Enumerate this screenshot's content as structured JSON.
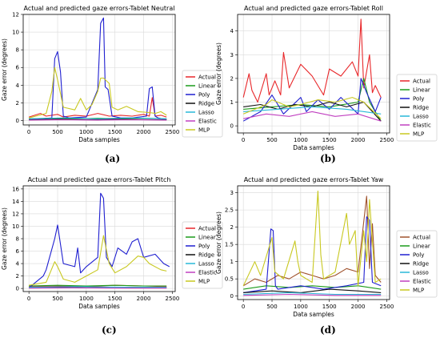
{
  "figure": {
    "panel_labels": [
      "(a)",
      "(b)",
      "(c)",
      "(d)"
    ]
  },
  "chart_data": [
    {
      "type": "line",
      "title": "Actual and predicted gaze errors-Tablet Neutral",
      "xlabel": "Data samples",
      "ylabel": "Gaze error (degrees)",
      "xlim": [
        -100,
        2550
      ],
      "ylim": [
        -0.5,
        12
      ],
      "xticks": [
        0,
        500,
        1000,
        1500,
        2000,
        2500
      ],
      "yticks": [
        0,
        2,
        4,
        6,
        8,
        10,
        12
      ],
      "grid": true,
      "legend_position": "right",
      "series": [
        {
          "name": "Actual",
          "color": "#e8272a",
          "x": [
            0,
            200,
            300,
            500,
            600,
            800,
            1000,
            1200,
            1400,
            1600,
            1800,
            2000,
            2100,
            2150,
            2200,
            2300,
            2400
          ],
          "y": [
            0.4,
            0.8,
            0.5,
            0.7,
            0.4,
            0.6,
            0.5,
            0.8,
            0.5,
            0.6,
            0.5,
            0.7,
            0.5,
            2.6,
            0.5,
            0.6,
            0.4
          ]
        },
        {
          "name": "Linear",
          "color": "#1a9a1a",
          "x": [
            0,
            400,
            800,
            1200,
            1600,
            2000,
            2400
          ],
          "y": [
            0.2,
            0.25,
            0.2,
            0.25,
            0.2,
            0.25,
            0.2
          ]
        },
        {
          "name": "Poly",
          "color": "#1f1fd0",
          "x": [
            0,
            400,
            450,
            500,
            550,
            600,
            700,
            1000,
            1200,
            1250,
            1300,
            1330,
            1380,
            1450,
            1600,
            1800,
            2050,
            2100,
            2150,
            2200,
            2250,
            2400
          ],
          "y": [
            0.1,
            0.3,
            7.0,
            7.8,
            5.5,
            0.5,
            0.3,
            0.4,
            3.5,
            11.0,
            11.6,
            3.8,
            3.5,
            0.5,
            0.3,
            0.3,
            0.5,
            3.6,
            3.8,
            0.5,
            0.3,
            0.1
          ]
        },
        {
          "name": "Ridge",
          "color": "#111111",
          "x": [
            0,
            500,
            1000,
            1500,
            2000,
            2400
          ],
          "y": [
            0.1,
            0.15,
            0.1,
            0.15,
            0.1,
            0.1
          ]
        },
        {
          "name": "Lasso",
          "color": "#29b8d8",
          "x": [
            0,
            600,
            1200,
            1800,
            2400
          ],
          "y": [
            0.2,
            0.3,
            0.2,
            0.3,
            0.2
          ]
        },
        {
          "name": "Elastic",
          "color": "#c040c0",
          "x": [
            0,
            600,
            1200,
            1800,
            2400
          ],
          "y": [
            0.05,
            0.1,
            0.05,
            0.1,
            0.05
          ]
        },
        {
          "name": "MLP",
          "color": "#c8c820",
          "x": [
            0,
            300,
            400,
            450,
            500,
            600,
            800,
            900,
            1000,
            1100,
            1200,
            1250,
            1300,
            1400,
            1450,
            1550,
            1700,
            1900,
            2100,
            2200,
            2300,
            2400
          ],
          "y": [
            0.3,
            0.8,
            3.3,
            6.0,
            4.6,
            1.5,
            1.2,
            2.5,
            1.2,
            1.8,
            3.3,
            4.8,
            4.8,
            4.2,
            1.5,
            1.2,
            1.6,
            1.0,
            0.9,
            0.8,
            1.0,
            0.6
          ]
        }
      ]
    },
    {
      "type": "line",
      "title": "Actual and predicted gaze errors-Tablet Roll",
      "xlabel": "Data samples",
      "ylabel": "Gaze error (degrees)",
      "xlim": [
        -100,
        2550
      ],
      "ylim": [
        -0.3,
        4.7
      ],
      "xticks": [
        0,
        500,
        1000,
        1500,
        2000,
        2500
      ],
      "yticks": [
        0,
        1,
        2,
        3,
        4
      ],
      "grid": true,
      "legend_position": "right",
      "series": [
        {
          "name": "Actual",
          "color": "#e8272a",
          "x": [
            0,
            100,
            150,
            250,
            400,
            450,
            550,
            650,
            700,
            800,
            1000,
            1200,
            1400,
            1500,
            1700,
            1900,
            2000,
            2050,
            2100,
            2200,
            2250,
            2300,
            2400
          ],
          "y": [
            1.2,
            2.2,
            1.5,
            1.0,
            2.2,
            1.3,
            1.9,
            1.3,
            3.1,
            1.6,
            2.6,
            2.1,
            1.3,
            2.4,
            2.1,
            2.7,
            2.1,
            4.5,
            1.6,
            3.0,
            1.4,
            1.7,
            1.2
          ]
        },
        {
          "name": "Linear",
          "color": "#1a9a1a",
          "x": [
            0,
            500,
            1000,
            1500,
            2000,
            2100,
            2200,
            2400
          ],
          "y": [
            0.7,
            0.8,
            0.9,
            0.8,
            1.0,
            2.0,
            1.0,
            0.2
          ]
        },
        {
          "name": "Poly",
          "color": "#1f1fd0",
          "x": [
            0,
            300,
            500,
            700,
            1000,
            1100,
            1300,
            1500,
            1700,
            2000,
            2050,
            2150,
            2300,
            2400
          ],
          "y": [
            0.2,
            0.6,
            1.3,
            0.5,
            1.2,
            0.6,
            1.1,
            0.7,
            1.2,
            0.5,
            2.0,
            1.4,
            0.6,
            1.2
          ]
        },
        {
          "name": "Ridge",
          "color": "#111111",
          "x": [
            0,
            300,
            600,
            900,
            1200,
            1500,
            1800,
            2100,
            2400
          ],
          "y": [
            0.8,
            0.9,
            0.7,
            0.9,
            0.8,
            1.0,
            0.8,
            1.0,
            0.2
          ]
        },
        {
          "name": "Lasso",
          "color": "#29b8d8",
          "x": [
            0,
            600,
            1200,
            1800,
            2400
          ],
          "y": [
            0.6,
            0.7,
            0.8,
            0.7,
            0.5
          ]
        },
        {
          "name": "Elastic",
          "color": "#c040c0",
          "x": [
            0,
            400,
            800,
            1200,
            1600,
            2000,
            2400
          ],
          "y": [
            0.3,
            0.5,
            0.4,
            0.6,
            0.4,
            0.5,
            0.2
          ]
        },
        {
          "name": "MLP",
          "color": "#c8c820",
          "x": [
            0,
            400,
            500,
            800,
            1000,
            1300,
            1600,
            1900,
            2100,
            2400
          ],
          "y": [
            0.5,
            0.9,
            1.1,
            0.8,
            0.9,
            1.1,
            1.0,
            1.2,
            1.0,
            0.3
          ]
        }
      ]
    },
    {
      "type": "line",
      "title": "Actual and predicted gaze errors-Tablet Pitch",
      "xlabel": "Data samples",
      "ylabel": "Gaze error (degrees)",
      "xlim": [
        -100,
        2550
      ],
      "ylim": [
        -0.5,
        16.5
      ],
      "xticks": [
        0,
        500,
        1000,
        1500,
        2000,
        2500
      ],
      "yticks": [
        0,
        2,
        4,
        6,
        8,
        10,
        12,
        14,
        16
      ],
      "grid": true,
      "legend_position": "right",
      "series": [
        {
          "name": "Actual",
          "color": "#e8272a",
          "x": [
            0,
            500,
            1000,
            1500,
            2000,
            2400
          ],
          "y": [
            0.3,
            0.4,
            0.3,
            0.5,
            0.4,
            0.3
          ]
        },
        {
          "name": "Linear",
          "color": "#1a9a1a",
          "x": [
            0,
            500,
            1000,
            1500,
            2000,
            2400
          ],
          "y": [
            0.4,
            0.5,
            0.4,
            0.5,
            0.4,
            0.4
          ]
        },
        {
          "name": "Poly",
          "color": "#1f1fd0",
          "x": [
            0,
            250,
            300,
            450,
            500,
            600,
            800,
            850,
            900,
            1000,
            1200,
            1250,
            1300,
            1350,
            1450,
            1550,
            1700,
            1800,
            1900,
            2000,
            2200,
            2300,
            2350,
            2450
          ],
          "y": [
            0.1,
            2.0,
            3.0,
            8.0,
            10.2,
            4.0,
            3.5,
            6.5,
            2.5,
            3.5,
            5.0,
            15.3,
            14.5,
            5.0,
            3.5,
            6.5,
            5.5,
            7.5,
            8.0,
            5.0,
            5.5,
            4.5,
            4.0,
            3.5
          ]
        },
        {
          "name": "Ridge",
          "color": "#111111",
          "x": [
            0,
            500,
            1000,
            1500,
            2000,
            2400
          ],
          "y": [
            0.1,
            0.2,
            0.1,
            0.2,
            0.1,
            0.1
          ]
        },
        {
          "name": "Lasso",
          "color": "#29b8d8",
          "x": [
            0,
            800,
            1600,
            2400
          ],
          "y": [
            0.2,
            0.3,
            0.2,
            0.2
          ]
        },
        {
          "name": "Elastic",
          "color": "#c040c0",
          "x": [
            0,
            800,
            1600,
            2400
          ],
          "y": [
            0.05,
            0.1,
            0.05,
            0.05
          ]
        },
        {
          "name": "MLP",
          "color": "#c8c820",
          "x": [
            0,
            300,
            450,
            500,
            600,
            800,
            1000,
            1200,
            1300,
            1400,
            1500,
            1700,
            1900,
            2000,
            2100,
            2300,
            2400
          ],
          "y": [
            0.5,
            1.0,
            4.3,
            3.5,
            1.5,
            1.0,
            2.0,
            3.0,
            8.5,
            4.0,
            2.5,
            3.5,
            5.2,
            5.0,
            4.0,
            3.0,
            2.8
          ]
        }
      ]
    },
    {
      "type": "line",
      "title": "Actual and predicted gaze errors-Tablet Yaw",
      "xlabel": "Data samples",
      "ylabel": "Gaze error (degrees)",
      "xlim": [
        -100,
        2550
      ],
      "ylim": [
        -0.1,
        3.2
      ],
      "xticks": [
        0,
        500,
        1000,
        1500,
        2000,
        2500
      ],
      "yticks": [
        0.0,
        0.5,
        1.0,
        1.5,
        2.0,
        2.5,
        3.0
      ],
      "grid": true,
      "legend_position": "right",
      "series": [
        {
          "name": "Actual",
          "color": "#a0522d",
          "x": [
            0,
            200,
            400,
            600,
            800,
            1000,
            1200,
            1400,
            1600,
            1800,
            2000,
            2150,
            2200,
            2250,
            2300,
            2400
          ],
          "y": [
            0.3,
            0.5,
            0.4,
            0.6,
            0.5,
            0.7,
            0.6,
            0.5,
            0.6,
            0.8,
            0.7,
            2.9,
            0.8,
            2.1,
            0.6,
            0.4
          ]
        },
        {
          "name": "Linear",
          "color": "#1a9a1a",
          "x": [
            0,
            400,
            800,
            1200,
            1600,
            2000,
            2400
          ],
          "y": [
            0.2,
            0.3,
            0.25,
            0.3,
            0.25,
            0.3,
            0.2
          ]
        },
        {
          "name": "Poly",
          "color": "#1f1fd0",
          "x": [
            0,
            400,
            480,
            520,
            560,
            600,
            1000,
            1400,
            1800,
            2100,
            2150,
            2200,
            2250,
            2400
          ],
          "y": [
            0.1,
            0.2,
            1.95,
            1.9,
            0.3,
            0.2,
            0.3,
            0.2,
            0.3,
            0.4,
            2.3,
            2.2,
            0.4,
            0.3
          ]
        },
        {
          "name": "Ridge",
          "color": "#111111",
          "x": [
            0,
            500,
            1000,
            1500,
            2000,
            2400
          ],
          "y": [
            0.1,
            0.15,
            0.1,
            0.2,
            0.15,
            0.1
          ]
        },
        {
          "name": "Lasso",
          "color": "#29b8d8",
          "x": [
            0,
            800,
            1600,
            2400
          ],
          "y": [
            0.05,
            0.1,
            0.05,
            0.05
          ]
        },
        {
          "name": "Elastic",
          "color": "#c040c0",
          "x": [
            0,
            800,
            1600,
            2400
          ],
          "y": [
            0.02,
            0.05,
            0.02,
            0.02
          ]
        },
        {
          "name": "MLP",
          "color": "#c8c820",
          "x": [
            0,
            200,
            300,
            500,
            550,
            700,
            900,
            950,
            1000,
            1200,
            1300,
            1350,
            1400,
            1600,
            1800,
            1850,
            1950,
            2000,
            2100,
            2150,
            2200,
            2300,
            2400
          ],
          "y": [
            0.3,
            1.0,
            0.6,
            1.7,
            0.7,
            0.5,
            1.6,
            1.0,
            0.6,
            0.4,
            3.05,
            1.2,
            0.5,
            0.7,
            2.4,
            1.5,
            1.9,
            0.3,
            1.9,
            1.0,
            2.8,
            0.4,
            0.5
          ]
        }
      ]
    }
  ]
}
